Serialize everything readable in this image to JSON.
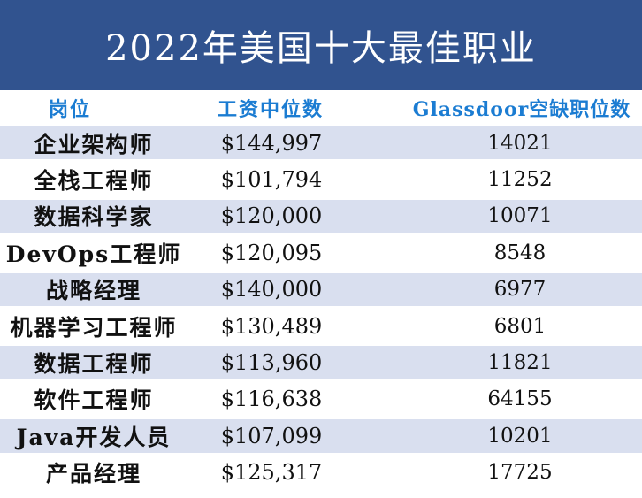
{
  "title": "2022年美国十大最佳职业",
  "colors": {
    "banner_background": "#31538F",
    "banner_text": "#FFFFFF",
    "header_text": "#1B7CD2",
    "row_stripe": "#D9DFEF",
    "body_text": "#111111"
  },
  "table": {
    "headers": [
      "岗位",
      "工资中位数",
      "Glassdoor空缺职位数"
    ],
    "rows": [
      {
        "job": "企业架构师",
        "salary": "$144,997",
        "openings": "14021"
      },
      {
        "job": "全栈工程师",
        "salary": "$101,794",
        "openings": "11252"
      },
      {
        "job": "数据科学家",
        "salary": "$120,000",
        "openings": "10071"
      },
      {
        "job": "DevOps工程师",
        "salary": "$120,095",
        "openings": "8548"
      },
      {
        "job": "战略经理",
        "salary": "$140,000",
        "openings": "6977"
      },
      {
        "job": "机器学习工程师",
        "salary": "$130,489",
        "openings": "6801"
      },
      {
        "job": "数据工程师",
        "salary": "$113,960",
        "openings": "11821"
      },
      {
        "job": "软件工程师",
        "salary": "$116,638",
        "openings": "64155"
      },
      {
        "job": "Java开发人员",
        "salary": "$107,099",
        "openings": "10201"
      },
      {
        "job": "产品经理",
        "salary": "$125,317",
        "openings": "17725"
      }
    ]
  },
  "chart_data": {
    "type": "table",
    "title": "2022年美国十大最佳职业",
    "columns": [
      "岗位",
      "工资中位数",
      "Glassdoor空缺职位数"
    ],
    "rows": [
      [
        "企业架构师",
        "$144,997",
        14021
      ],
      [
        "全栈工程师",
        "$101,794",
        11252
      ],
      [
        "数据科学家",
        "$120,000",
        10071
      ],
      [
        "DevOps工程师",
        "$120,095",
        8548
      ],
      [
        "战略经理",
        "$140,000",
        6977
      ],
      [
        "机器学习工程师",
        "$130,489",
        6801
      ],
      [
        "数据工程师",
        "$113,960",
        11821
      ],
      [
        "软件工程师",
        "$116,638",
        64155
      ],
      [
        "Java开发人员",
        "$107,099",
        10201
      ],
      [
        "产品经理",
        "$125,317",
        17725
      ]
    ],
    "layout": {
      "row_striping": "odd rows light blue #D9DFEF, even rows white",
      "header_style": "blue bold text on white",
      "title_style": "white text on dark blue banner"
    }
  }
}
